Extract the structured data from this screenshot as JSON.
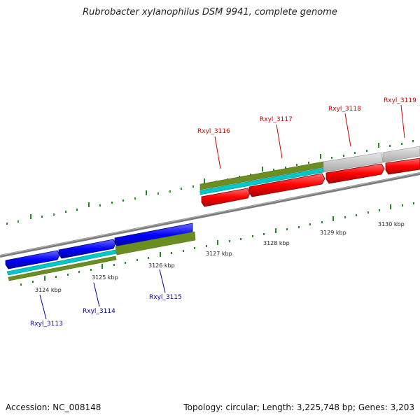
{
  "title": "Rubrobacter xylanophilus DSM 9941, complete genome",
  "footer": {
    "accession": "Accession: NC_008148",
    "topology": "Topology: circular; Length: 3,225,748 bp; Genes: 3,203"
  },
  "colors": {
    "forward_cds": "#ff0000",
    "reverse_cds": "#0000ff",
    "gene_forward": "#f0f0f0",
    "olive_gene": "#6b8e23",
    "cyan_rna": "#00c8c8",
    "grey_gene": "#c8c8c8",
    "backbone": "#808080",
    "tick": "#228b22",
    "forward_label": "#cc0000",
    "reverse_label": "#000099"
  },
  "kbp_labels": [
    "3124 kbp",
    "3125 kbp",
    "3126 kbp",
    "3127 kbp",
    "3128 kbp",
    "3129 kbp",
    "3130 kbp"
  ],
  "gene_labels": {
    "forward": [
      "Rxyl_3116",
      "Rxyl_3117",
      "Rxyl_3118",
      "Rxyl_3119"
    ],
    "reverse": [
      "Rxyl_3113",
      "Rxyl_3114",
      "Rxyl_3115"
    ]
  }
}
